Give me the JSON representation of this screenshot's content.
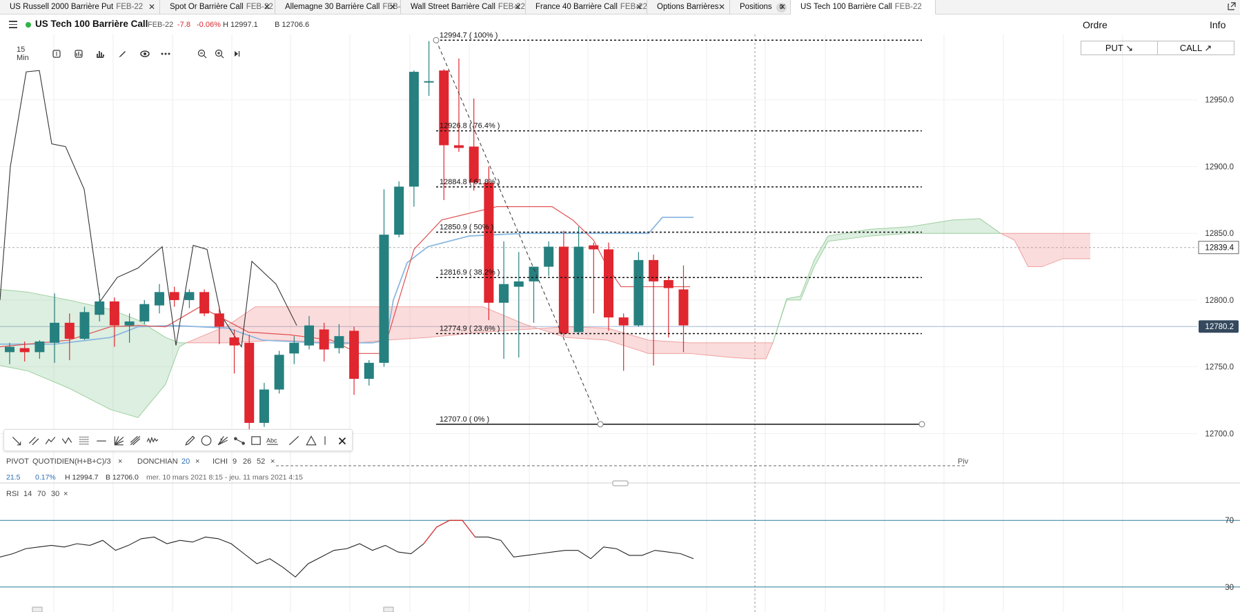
{
  "tabs": [
    {
      "name": "US Russell 2000 Barrière Put",
      "exp": "FEB-22",
      "closable": true
    },
    {
      "name": "Spot Or Barrière Call",
      "exp": "FEB-22",
      "closable": true
    },
    {
      "name": "Allemagne 30 Barrière Call",
      "exp": "FEB-22",
      "closable": true
    },
    {
      "name": "Wall Street Barrière Call",
      "exp": "FEB-22",
      "closable": true
    },
    {
      "name": "France 40 Barrière Call",
      "exp": "FEB-22",
      "closable": true
    },
    {
      "name": "Options Barrières",
      "exp": "",
      "closable": true
    },
    {
      "name": "Positions",
      "exp": "",
      "badge": "0",
      "closable": true
    },
    {
      "name": "US Tech 100 Barrière Call",
      "exp": "FEB-22",
      "closable": false,
      "active": true
    }
  ],
  "instrument": {
    "title": "US Tech 100 Barrière Call",
    "expiry": "FEB-22",
    "change": "-7.8",
    "change_pct": "-0.06%",
    "high": "H 12997.1",
    "low": "B 12706.6",
    "status_color": "#2fb344",
    "down_color": "#d9262e"
  },
  "panel_tabs": {
    "order": "Ordre",
    "info": "Info"
  },
  "trade_buttons": {
    "put": "PUT ↘",
    "call": "CALL ↗"
  },
  "toolbar": {
    "timeframe": "15 Min",
    "icons": [
      "candle-type-icon",
      "bar-style-icon",
      "indicators-icon",
      "draw-icon",
      "eye-icon",
      "more-icon",
      "zoom-out-icon",
      "zoom-in-icon",
      "scroll-end-icon"
    ]
  },
  "drawing_tools": {
    "icons": [
      "trendline-icon",
      "parallel-channel-icon",
      "polyline-icon",
      "zigzag-icon",
      "fibonacci-icon",
      "horizontal-line-icon",
      "gann-icon",
      "pitchfork-icon",
      "wave-icon",
      "pencil-icon",
      "circle-icon",
      "fib-fan-icon",
      "measure-icon",
      "rectangle-icon",
      "text-icon",
      "ray-icon",
      "triangle-icon",
      "vertical-line-icon",
      "close-icon"
    ],
    "text_tool_label": "Abc"
  },
  "indicators": {
    "pivot_label": "PIVOT",
    "pivot_period": "QUOTIDIEN",
    "pivot_formula": "(H+B+C)/3",
    "donchian_label": "DONCHIAN",
    "donchian_period": "20",
    "ichi_label": "ICHI",
    "ichi_p1": "9",
    "ichi_p2": "26",
    "ichi_p3": "52",
    "pivot_line_label": "Piv"
  },
  "ohlc": {
    "change": "21.5",
    "change_pct": "0.17%",
    "high": "H 12994.7",
    "low": "B 12706.0",
    "range": "mer. 10 mars 2021 8:15 - jeu. 11 mars 2021 4:15"
  },
  "rsi": {
    "label": "RSI",
    "p1": "14",
    "p2": "70",
    "p3": "30",
    "upper": "70",
    "lower": "30"
  },
  "chart_data": {
    "type": "candlestick",
    "interval": "15 Min",
    "ylim": [
      12694,
      13000
    ],
    "y_ticks": [
      "12950.0",
      "12900.0",
      "12850.0",
      "12800.0",
      "12750.0",
      "12700.0"
    ],
    "current_price": "12780.2",
    "cursor_price": "12839.4",
    "up_color": "#26807f",
    "down_color": "#e0262f",
    "candles": [
      {
        "o": 12761,
        "h": 12768,
        "l": 12752,
        "c": 12765
      },
      {
        "o": 12764,
        "h": 12769,
        "l": 12754,
        "c": 12761
      },
      {
        "o": 12761,
        "h": 12770,
        "l": 12756,
        "c": 12769
      },
      {
        "o": 12768,
        "h": 12805,
        "l": 12753,
        "c": 12783
      },
      {
        "o": 12783,
        "h": 12790,
        "l": 12755,
        "c": 12771
      },
      {
        "o": 12771,
        "h": 12795,
        "l": 12770,
        "c": 12791
      },
      {
        "o": 12789,
        "h": 12805,
        "l": 12784,
        "c": 12799
      },
      {
        "o": 12799,
        "h": 12802,
        "l": 12765,
        "c": 12781
      },
      {
        "o": 12781,
        "h": 12790,
        "l": 12768,
        "c": 12784
      },
      {
        "o": 12784,
        "h": 12800,
        "l": 12782,
        "c": 12797
      },
      {
        "o": 12796,
        "h": 12812,
        "l": 12790,
        "c": 12806
      },
      {
        "o": 12806,
        "h": 12810,
        "l": 12795,
        "c": 12800
      },
      {
        "o": 12800,
        "h": 12808,
        "l": 12794,
        "c": 12806
      },
      {
        "o": 12806,
        "h": 12808,
        "l": 12788,
        "c": 12790
      },
      {
        "o": 12790,
        "h": 12795,
        "l": 12767,
        "c": 12780
      },
      {
        "o": 12772,
        "h": 12778,
        "l": 12745,
        "c": 12766
      },
      {
        "o": 12768,
        "h": 12774,
        "l": 12702,
        "c": 12708
      },
      {
        "o": 12708,
        "h": 12738,
        "l": 12705,
        "c": 12733
      },
      {
        "o": 12733,
        "h": 12762,
        "l": 12730,
        "c": 12759
      },
      {
        "o": 12760,
        "h": 12773,
        "l": 12752,
        "c": 12768
      },
      {
        "o": 12766,
        "h": 12788,
        "l": 12763,
        "c": 12781
      },
      {
        "o": 12778,
        "h": 12783,
        "l": 12754,
        "c": 12763
      },
      {
        "o": 12764,
        "h": 12782,
        "l": 12760,
        "c": 12773
      },
      {
        "o": 12777,
        "h": 12780,
        "l": 12729,
        "c": 12741
      },
      {
        "o": 12741,
        "h": 12755,
        "l": 12736,
        "c": 12753
      },
      {
        "o": 12753,
        "h": 12883,
        "l": 12750,
        "c": 12849
      },
      {
        "o": 12849,
        "h": 12889,
        "l": 12847,
        "c": 12885
      },
      {
        "o": 12885,
        "h": 12972,
        "l": 12870,
        "c": 12971
      },
      {
        "o": 12964,
        "h": 12994,
        "l": 12953,
        "c": 12964
      },
      {
        "o": 12972,
        "h": 12973,
        "l": 12875,
        "c": 12916
      },
      {
        "o": 12916,
        "h": 12981,
        "l": 12911,
        "c": 12914
      },
      {
        "o": 12915,
        "h": 12951,
        "l": 12882,
        "c": 12888
      },
      {
        "o": 12888,
        "h": 12900,
        "l": 12785,
        "c": 12798
      },
      {
        "o": 12798,
        "h": 12844,
        "l": 12756,
        "c": 12812
      },
      {
        "o": 12810,
        "h": 12836,
        "l": 12757,
        "c": 12814
      },
      {
        "o": 12814,
        "h": 12825,
        "l": 12783,
        "c": 12825
      },
      {
        "o": 12825,
        "h": 12844,
        "l": 12818,
        "c": 12840
      },
      {
        "o": 12840,
        "h": 12852,
        "l": 12773,
        "c": 12775
      },
      {
        "o": 12776,
        "h": 12855,
        "l": 12774,
        "c": 12840
      },
      {
        "o": 12841,
        "h": 12843,
        "l": 12790,
        "c": 12838
      },
      {
        "o": 12838,
        "h": 12843,
        "l": 12777,
        "c": 12787
      },
      {
        "o": 12787,
        "h": 12790,
        "l": 12747,
        "c": 12781
      },
      {
        "o": 12781,
        "h": 12836,
        "l": 12780,
        "c": 12830
      },
      {
        "o": 12830,
        "h": 12834,
        "l": 12751,
        "c": 12814
      },
      {
        "o": 12815,
        "h": 12818,
        "l": 12772,
        "c": 12809
      },
      {
        "o": 12808,
        "h": 12826,
        "l": 12761,
        "c": 12781
      }
    ],
    "fibonacci": [
      {
        "label": "12994.7 ( 100% )",
        "value": 12994.7
      },
      {
        "label": "12926.8 ( 76.4% )",
        "value": 12926.8
      },
      {
        "label": "12884.8 ( 61.8% )",
        "value": 12884.8
      },
      {
        "label": "12850.9 ( 50% )",
        "value": 12850.9
      },
      {
        "label": "12816.9 ( 38.2% )",
        "value": 12816.9
      },
      {
        "label": "12774.9 ( 23.6% )",
        "value": 12774.9
      },
      {
        "label": "12707.0 ( 0% )",
        "value": 12707.0
      }
    ],
    "rsi_values": [
      48,
      50,
      53,
      54,
      55,
      54,
      56,
      55,
      58,
      52,
      55,
      59,
      60,
      56,
      58,
      57,
      60,
      59,
      56,
      50,
      44,
      47,
      42,
      36,
      44,
      48,
      52,
      53,
      56,
      52,
      55,
      51,
      50,
      56,
      66,
      70,
      70,
      60,
      60,
      58,
      48,
      49,
      50,
      51,
      52,
      52,
      47,
      54,
      53,
      49,
      49,
      52,
      51,
      50,
      47
    ]
  }
}
